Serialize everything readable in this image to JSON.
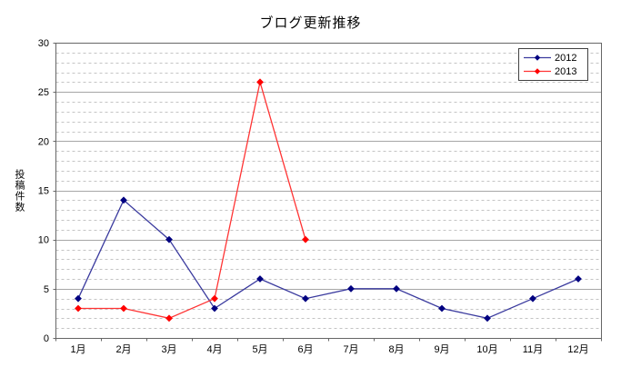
{
  "chart_data": {
    "type": "line",
    "title": "ブログ更新推移",
    "xlabel": "",
    "ylabel": "投稿件数",
    "categories": [
      "1月",
      "2月",
      "3月",
      "4月",
      "5月",
      "6月",
      "7月",
      "8月",
      "9月",
      "10月",
      "11月",
      "12月"
    ],
    "series": [
      {
        "name": "2012",
        "color": "#3A3A9E",
        "marker_color": "#000080",
        "values": [
          4,
          14,
          10,
          3,
          6,
          4,
          5,
          5,
          3,
          2,
          4,
          6
        ]
      },
      {
        "name": "2013",
        "color": "#FF3333",
        "marker_color": "#FF0000",
        "values": [
          3,
          3,
          2,
          4,
          26,
          10
        ]
      }
    ],
    "ylim": [
      0,
      30
    ],
    "y_major_step": 5,
    "y_minor_step": 1,
    "y_tick_labels": [
      "0",
      "5",
      "10",
      "15",
      "20",
      "25",
      "30"
    ],
    "marker": "diamond",
    "grid": "major-solid, minor-dashed",
    "legend_position": "top-right-inside",
    "colors": {
      "background": "#FFFFFF",
      "plot_border": "#666666",
      "axis_line": "#666666",
      "major_grid": "#A6A6A6",
      "minor_grid": "#C4C4C4",
      "tick_text": "#000000"
    }
  }
}
